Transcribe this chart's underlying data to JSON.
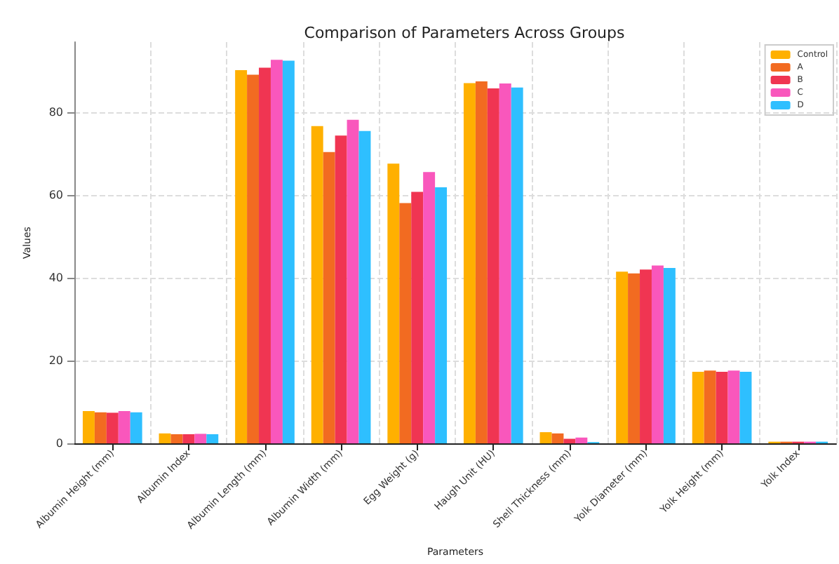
{
  "chart_data": {
    "type": "bar",
    "title": "Comparison of Parameters Across Groups",
    "xlabel": "Parameters",
    "ylabel": "Values",
    "categories": [
      "Albumin Height (mm)",
      "Albumin Index",
      "Albumin Length (mm)",
      "Albumin Width (mm)",
      "Egg Weight (g)",
      "Haugh Unit (HU)",
      "Shell Thickness (mm)",
      "Yolk Diameter (mm)",
      "Yolk Height (mm)",
      "Yolk Index"
    ],
    "series": [
      {
        "name": "Control",
        "color": "#ffb000",
        "values": [
          7.8,
          2.4,
          90.2,
          76.7,
          67.6,
          87.1,
          2.7,
          41.5,
          17.3,
          0.4
        ]
      },
      {
        "name": "A",
        "color": "#f26b21",
        "values": [
          7.5,
          2.2,
          89.1,
          70.4,
          58.1,
          87.5,
          2.4,
          41.1,
          17.6,
          0.4
        ]
      },
      {
        "name": "B",
        "color": "#f03552",
        "values": [
          7.4,
          2.2,
          90.8,
          74.4,
          60.8,
          85.8,
          1.1,
          42.0,
          17.3,
          0.4
        ]
      },
      {
        "name": "C",
        "color": "#f957bc",
        "values": [
          7.8,
          2.3,
          92.7,
          78.2,
          65.6,
          87.0,
          1.4,
          43.0,
          17.6,
          0.4
        ]
      },
      {
        "name": "D",
        "color": "#2ebfff",
        "values": [
          7.5,
          2.2,
          92.5,
          75.5,
          61.9,
          86.0,
          0.3,
          42.4,
          17.3,
          0.4
        ]
      }
    ],
    "ylim": [
      0,
      97
    ],
    "yticks": [
      0,
      20,
      40,
      60,
      80
    ],
    "grid": true,
    "legend": "top right"
  }
}
